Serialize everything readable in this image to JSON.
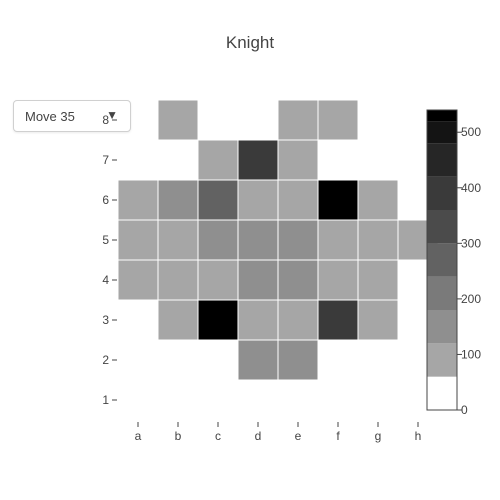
{
  "title": "Knight",
  "dropdown": {
    "selected": "Move 35",
    "arrow": "▼"
  },
  "chart_data": {
    "type": "heatmap",
    "title": "Knight",
    "x_categories": [
      "a",
      "b",
      "c",
      "d",
      "e",
      "f",
      "g",
      "h"
    ],
    "y_categories": [
      "1",
      "2",
      "3",
      "4",
      "5",
      "6",
      "7",
      "8"
    ],
    "rows": [
      [
        null,
        null,
        null,
        null,
        null,
        null,
        null,
        null
      ],
      [
        null,
        null,
        null,
        140,
        140,
        null,
        null,
        null
      ],
      [
        null,
        100,
        540,
        100,
        100,
        380,
        100,
        null
      ],
      [
        100,
        100,
        100,
        140,
        140,
        100,
        100,
        null
      ],
      [
        100,
        100,
        140,
        140,
        140,
        100,
        100,
        100
      ],
      [
        100,
        140,
        260,
        100,
        100,
        540,
        100,
        null
      ],
      [
        null,
        null,
        100,
        380,
        100,
        null,
        null,
        null
      ],
      [
        null,
        100,
        null,
        null,
        100,
        100,
        null,
        null
      ]
    ],
    "colorscale": {
      "range": [
        0,
        540
      ],
      "ticks": [
        0,
        100,
        200,
        300,
        400,
        500
      ],
      "bins": [
        {
          "from": 0,
          "to": 60,
          "color": "#ffffff"
        },
        {
          "from": 60,
          "to": 120,
          "color": "#a6a6a6"
        },
        {
          "from": 120,
          "to": 180,
          "color": "#8f8f8f"
        },
        {
          "from": 180,
          "to": 240,
          "color": "#7a7a7a"
        },
        {
          "from": 240,
          "to": 300,
          "color": "#626262"
        },
        {
          "from": 300,
          "to": 360,
          "color": "#4b4b4b"
        },
        {
          "from": 360,
          "to": 420,
          "color": "#3a3a3a"
        },
        {
          "from": 420,
          "to": 480,
          "color": "#262626"
        },
        {
          "from": 480,
          "to": 520,
          "color": "#141414"
        },
        {
          "from": 520,
          "to": 540,
          "color": "#000000"
        }
      ]
    },
    "grid": false,
    "legend": "colorbar-right"
  }
}
